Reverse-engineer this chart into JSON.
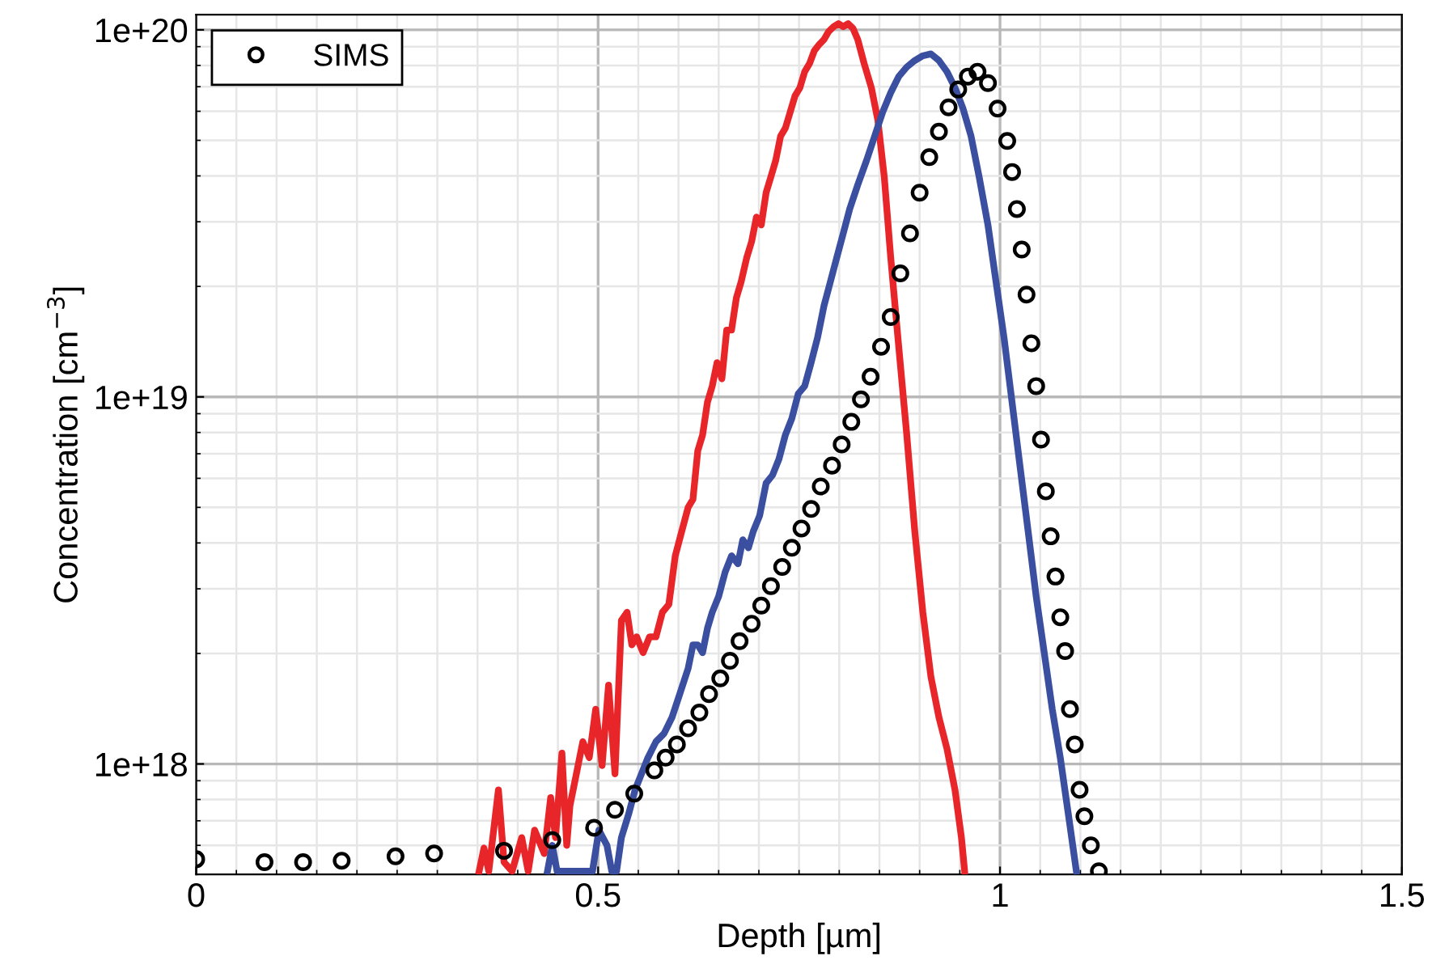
{
  "chart_data": {
    "type": "line",
    "xlabel": "Depth [µm]",
    "ylabel": "Concentration [cm$^{−3}$]",
    "log": "y",
    "xlim": [
      0,
      1.5
    ],
    "xticks": [
      0,
      0.5,
      1,
      1.5
    ],
    "ylim": [
      5e+17,
      1.1e+20
    ],
    "yticks": [
      {
        "value": 1e+18,
        "label": "1e+18"
      },
      {
        "value": 1e+19,
        "label": "1e+19"
      },
      {
        "value": 1e+20,
        "label": "1e+20"
      }
    ],
    "grid": true,
    "legend": "top left",
    "series": [
      {
        "color": "#e8262a",
        "marker": "none",
        "x": [
          0.352,
          0.358,
          0.364,
          0.376,
          0.383,
          0.393,
          0.405,
          0.413,
          0.421,
          0.433,
          0.441,
          0.447,
          0.455,
          0.461,
          0.465,
          0.473,
          0.481,
          0.489,
          0.497,
          0.505,
          0.513,
          0.521,
          0.529,
          0.536,
          0.542,
          0.548,
          0.556,
          0.564,
          0.572,
          0.58,
          0.588,
          0.596,
          0.604,
          0.612,
          0.618,
          0.624,
          0.63,
          0.636,
          0.642,
          0.648,
          0.654,
          0.66,
          0.666,
          0.672,
          0.678,
          0.685,
          0.691,
          0.697,
          0.703,
          0.709,
          0.715,
          0.721,
          0.727,
          0.733,
          0.739,
          0.745,
          0.751,
          0.757,
          0.763,
          0.769,
          0.775,
          0.781,
          0.787,
          0.793,
          0.799,
          0.805,
          0.811,
          0.817,
          0.823,
          0.831,
          0.84,
          0.848,
          0.856,
          0.864,
          0.874,
          0.884,
          0.894,
          0.904,
          0.914,
          0.924,
          0.934,
          0.944,
          0.952,
          0.956
        ],
        "values": [
          5.1e+17,
          5.9e+17,
          5.1e+17,
          8.5e+17,
          5.4e+17,
          5.1e+17,
          6.3e+17,
          5.1e+17,
          6.6e+17,
          5.7e+17,
          8.1e+17,
          6.3e+17,
          1.07e+18,
          6e+17,
          7.7e+17,
          9.4e+17,
          1.15e+18,
          1.04e+18,
          1.41e+18,
          9.9e+17,
          1.64e+18,
          9.4e+17,
          2.46e+18,
          2.59e+18,
          2.11e+18,
          2.22e+18,
          2.01e+18,
          2.22e+18,
          2.22e+18,
          2.59e+18,
          2.72e+18,
          3.69e+18,
          4.3e+18,
          5e+18,
          5.26e+18,
          7.13e+18,
          7.88e+18,
          9.66e+18,
          1.07e+19,
          1.24e+19,
          1.12e+19,
          1.52e+19,
          1.52e+19,
          1.86e+19,
          2.06e+19,
          2.4e+19,
          2.65e+19,
          3.09e+19,
          2.94e+19,
          3.6e+19,
          3.98e+19,
          4.41e+19,
          5.13e+19,
          5.4e+19,
          5.97e+19,
          6.61e+19,
          6.95e+19,
          7.69e+19,
          8.09e+19,
          8.77e+19,
          9.12e+19,
          9.41e+19,
          9.91e+19,
          1.02e+20,
          1.04e+20,
          1.02e+20,
          1.04e+20,
          1.01e+20,
          9.41e+19,
          8.09e+19,
          6.95e+19,
          5.68e+19,
          3.98e+19,
          2.4e+19,
          1.37e+19,
          7.88e+18,
          4.3e+18,
          2.59e+18,
          1.73e+18,
          1.34e+18,
          1.1e+18,
          8.5e+17,
          6.3e+17,
          5.1e+17
        ]
      },
      {
        "color": "#3a4fa0",
        "marker": "none",
        "x": [
          0.437,
          0.443,
          0.449,
          0.493,
          0.501,
          0.511,
          0.517,
          0.523,
          0.529,
          0.538,
          0.546,
          0.554,
          0.562,
          0.572,
          0.582,
          0.592,
          0.602,
          0.612,
          0.618,
          0.624,
          0.63,
          0.636,
          0.642,
          0.65,
          0.658,
          0.666,
          0.674,
          0.68,
          0.687,
          0.693,
          0.701,
          0.709,
          0.717,
          0.725,
          0.733,
          0.741,
          0.749,
          0.757,
          0.765,
          0.773,
          0.781,
          0.789,
          0.797,
          0.805,
          0.813,
          0.823,
          0.834,
          0.844,
          0.854,
          0.864,
          0.874,
          0.884,
          0.894,
          0.904,
          0.914,
          0.924,
          0.934,
          0.944,
          0.954,
          0.964,
          0.974,
          0.985,
          0.995,
          1.005,
          1.015,
          1.025,
          1.035,
          1.045,
          1.055,
          1.065,
          1.075,
          1.085,
          1.095
        ],
        "values": [
          5.1e+17,
          6e+17,
          5.1e+17,
          5.1e+17,
          6.6e+17,
          6e+17,
          5.1e+17,
          5.1e+17,
          6.3e+17,
          7.3e+17,
          8.5e+17,
          9.4e+17,
          1.04e+18,
          1.15e+18,
          1.21e+18,
          1.34e+18,
          1.56e+18,
          1.82e+18,
          2.11e+18,
          2.11e+18,
          2.01e+18,
          2.34e+18,
          2.59e+18,
          2.86e+18,
          3.33e+18,
          3.69e+18,
          3.51e+18,
          4.08e+18,
          3.88e+18,
          4.3e+18,
          4.75e+18,
          5.82e+18,
          6.12e+18,
          6.77e+18,
          7.88e+18,
          8.73e+18,
          1.02e+19,
          1.07e+19,
          1.24e+19,
          1.45e+19,
          1.77e+19,
          2.06e+19,
          2.4e+19,
          2.79e+19,
          3.25e+19,
          3.78e+19,
          4.41e+19,
          5.13e+19,
          5.97e+19,
          6.74e+19,
          7.46e+19,
          7.92e+19,
          8.25e+19,
          8.5e+19,
          8.6e+19,
          8.25e+19,
          7.69e+19,
          6.95e+19,
          6.1e+19,
          5.13e+19,
          3.98e+19,
          2.94e+19,
          2.06e+19,
          1.45e+19,
          9.66e+18,
          6.44e+18,
          4.3e+18,
          2.86e+18,
          2.01e+18,
          1.41e+18,
          1.04e+18,
          7.3e+17,
          5.1e+17
        ]
      },
      {
        "name": "SIMS",
        "type": "scatter",
        "color": "#000000",
        "marker": "circle",
        "x": [
          0,
          0.085,
          0.133,
          0.181,
          0.248,
          0.296,
          0.383,
          0.443,
          0.495,
          0.521,
          0.545,
          0.57,
          0.584,
          0.598,
          0.612,
          0.626,
          0.638,
          0.652,
          0.664,
          0.676,
          0.691,
          0.703,
          0.715,
          0.729,
          0.741,
          0.753,
          0.765,
          0.777,
          0.791,
          0.803,
          0.815,
          0.827,
          0.839,
          0.852,
          0.864,
          0.876,
          0.888,
          0.9,
          0.912,
          0.924,
          0.936,
          0.948,
          0.96,
          0.972,
          0.985,
          0.997,
          1.009,
          1.015,
          1.021,
          1.027,
          1.033,
          1.039,
          1.045,
          1.051,
          1.057,
          1.063,
          1.069,
          1.075,
          1.081,
          1.087,
          1.093,
          1.099,
          1.105,
          1.113,
          1.123
        ],
        "values": [
          5.5e+17,
          5.4e+17,
          5.4e+17,
          5.45e+17,
          5.6e+17,
          5.7e+17,
          5.8e+17,
          6.2e+17,
          6.7e+17,
          7.5e+17,
          8.3e+17,
          9.6e+17,
          1.04e+18,
          1.13e+18,
          1.25e+18,
          1.38e+18,
          1.55e+18,
          1.71e+18,
          1.91e+18,
          2.16e+18,
          2.41e+18,
          2.7e+18,
          3.05e+18,
          3.44e+18,
          3.88e+18,
          4.38e+18,
          4.95e+18,
          5.7e+18,
          6.5e+18,
          7.42e+18,
          8.55e+18,
          9.85e+18,
          1.135e+19,
          1.37e+19,
          1.65e+19,
          2.17e+19,
          2.79e+19,
          3.6e+19,
          4.5e+19,
          5.28e+19,
          6.15e+19,
          6.88e+19,
          7.46e+19,
          7.69e+19,
          7.16e+19,
          6.1e+19,
          4.98e+19,
          4.1e+19,
          3.25e+19,
          2.52e+19,
          1.9e+19,
          1.4e+19,
          1.07e+19,
          7.65e+18,
          5.53e+18,
          4.17e+18,
          3.24e+18,
          2.51e+18,
          2.03e+18,
          1.41e+18,
          1.13e+18,
          8.5e+17,
          7.2e+17,
          6e+17,
          5.1e+17
        ]
      }
    ]
  }
}
